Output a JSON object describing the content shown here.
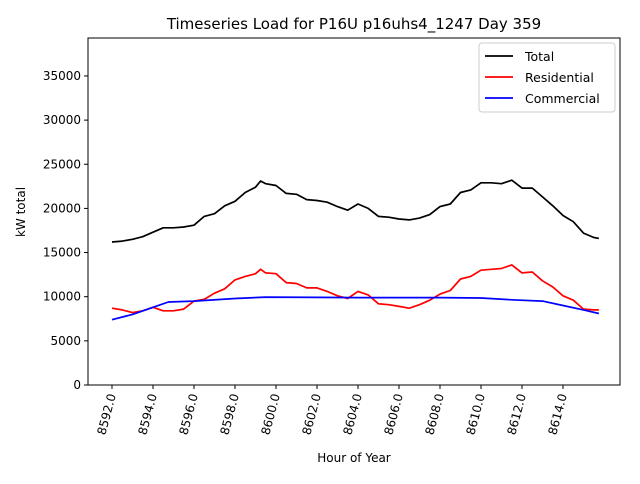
{
  "chart_data": {
    "type": "line",
    "title": "Timeseries Load for P16U p16uhs4_1247  Day 359",
    "xlabel": "Hour of Year",
    "ylabel": "kW total",
    "xlim": [
      8590.83,
      8616.78
    ],
    "ylim": [
      0,
      39300
    ],
    "xticks": [
      8592,
      8594,
      8596,
      8598,
      8600,
      8602,
      8604,
      8606,
      8608,
      8610,
      8612,
      8614
    ],
    "xtick_labels": [
      "8592.0",
      "8594.0",
      "8596.0",
      "8598.0",
      "8600.0",
      "8602.0",
      "8604.0",
      "8606.0",
      "8608.0",
      "8610.0",
      "8612.0",
      "8614.0"
    ],
    "yticks": [
      0,
      5000,
      10000,
      15000,
      20000,
      25000,
      30000,
      35000
    ],
    "ytick_labels": [
      "0",
      "5000",
      "10000",
      "15000",
      "20000",
      "25000",
      "30000",
      "35000"
    ],
    "grid": false,
    "legend_position": "top-right",
    "series": [
      {
        "name": "Total",
        "color": "#000000",
        "x": [
          8592,
          8592.5,
          8593,
          8593.5,
          8594,
          8594.5,
          8595,
          8595.5,
          8596,
          8596.5,
          8597,
          8597.5,
          8598,
          8598.5,
          8599,
          8599.25,
          8599.5,
          8600,
          8600.5,
          8601,
          8601.5,
          8602,
          8602.5,
          8603,
          8603.5,
          8604,
          8604.5,
          8605,
          8605.5,
          8606,
          8606.5,
          8607,
          8607.5,
          8608,
          8608.5,
          8609,
          8609.5,
          8610,
          8610.5,
          8611,
          8611.5,
          8612,
          8612.5,
          8613,
          8613.5,
          8614,
          8614.5,
          8615,
          8615.5,
          8615.75
        ],
        "y": [
          16200,
          16300,
          16500,
          16800,
          17300,
          17800,
          17800,
          17900,
          18100,
          19100,
          19400,
          20300,
          20800,
          21800,
          22400,
          23100,
          22800,
          22600,
          21700,
          21600,
          21000,
          20900,
          20700,
          20200,
          19800,
          20500,
          20000,
          19100,
          19000,
          18800,
          18700,
          18900,
          19300,
          20200,
          20500,
          21800,
          22100,
          22900,
          22900,
          22800,
          23200,
          22300,
          22300,
          21300,
          20300,
          19200,
          18500,
          17200,
          16700,
          16600
        ]
      },
      {
        "name": "Residential",
        "color": "#ff0000",
        "x": [
          8592,
          8592.5,
          8593,
          8593.5,
          8594,
          8594.5,
          8595,
          8595.5,
          8596,
          8596.5,
          8597,
          8597.5,
          8598,
          8598.5,
          8599,
          8599.25,
          8599.5,
          8600,
          8600.5,
          8601,
          8601.5,
          8602,
          8602.5,
          8603,
          8603.5,
          8604,
          8604.5,
          8605,
          8605.5,
          8606,
          8606.5,
          8607,
          8607.5,
          8608,
          8608.5,
          8609,
          8609.5,
          8610,
          8610.5,
          8611,
          8611.5,
          8612,
          8612.5,
          8613,
          8613.5,
          8614,
          8614.5,
          8615,
          8615.5,
          8615.75
        ],
        "y": [
          8700,
          8500,
          8200,
          8400,
          8800,
          8400,
          8400,
          8600,
          9500,
          9700,
          10400,
          10900,
          11900,
          12300,
          12600,
          13100,
          12700,
          12600,
          11600,
          11500,
          11000,
          11000,
          10600,
          10100,
          9800,
          10600,
          10200,
          9200,
          9100,
          8900,
          8700,
          9100,
          9600,
          10300,
          10700,
          12000,
          12300,
          13000,
          13100,
          13200,
          13600,
          12700,
          12800,
          11800,
          11100,
          10100,
          9600,
          8600,
          8500,
          8500
        ]
      },
      {
        "name": "Commercial",
        "color": "#0000ff",
        "x": [
          8592,
          8593,
          8594,
          8594.75,
          8596,
          8598,
          8599.5,
          8602,
          8604,
          8606,
          8608,
          8610,
          8611.5,
          8613,
          8614,
          8615,
          8615.75
        ],
        "y": [
          7400,
          8000,
          8800,
          9400,
          9500,
          9800,
          9950,
          9920,
          9900,
          9900,
          9900,
          9850,
          9650,
          9500,
          9000,
          8500,
          8100
        ]
      }
    ]
  }
}
